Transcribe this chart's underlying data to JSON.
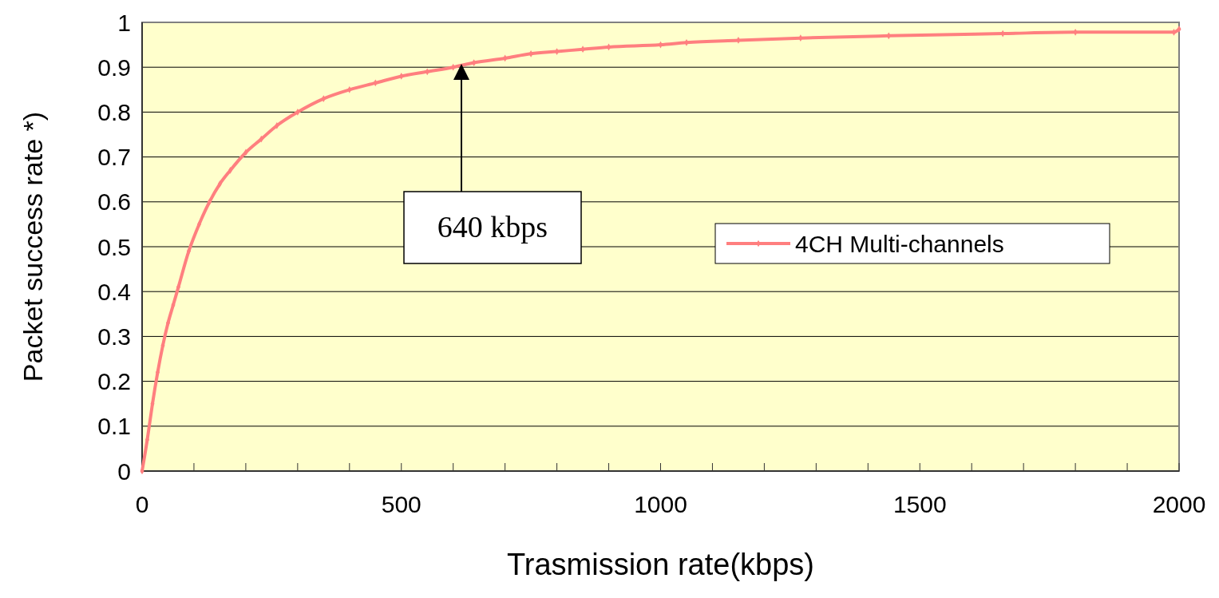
{
  "chart_data": {
    "type": "line",
    "xlabel": "Trasmission rate(kbps)",
    "ylabel": "Packet success rate *)",
    "xlim": [
      0,
      2000
    ],
    "xticks": [
      0,
      500,
      1000,
      1500,
      2000
    ],
    "ylim": [
      0,
      1
    ],
    "yticks": [
      0,
      0.1,
      0.2,
      0.3,
      0.4,
      0.5,
      0.6,
      0.7,
      0.8,
      0.9,
      1
    ],
    "grid": "y",
    "legend": "right",
    "marker": "diamond",
    "line_style": "solid",
    "annotations": [
      "640 kbps"
    ],
    "series": [
      {
        "name": "4CH Multi-channels",
        "color": "#ff7f7f",
        "x": [
          0,
          10,
          20,
          30,
          40,
          50,
          60,
          70,
          90,
          110,
          130,
          150,
          170,
          200,
          230,
          260,
          300,
          350,
          400,
          450,
          500,
          550,
          600,
          640,
          700,
          750,
          800,
          850,
          900,
          1000,
          1050,
          1150,
          1270,
          1440,
          1660,
          1800,
          1990,
          2000
        ],
        "values": [
          0,
          0.07,
          0.15,
          0.22,
          0.28,
          0.33,
          0.37,
          0.41,
          0.49,
          0.55,
          0.6,
          0.64,
          0.67,
          0.71,
          0.74,
          0.77,
          0.8,
          0.83,
          0.85,
          0.865,
          0.88,
          0.89,
          0.9,
          0.91,
          0.92,
          0.93,
          0.935,
          0.94,
          0.945,
          0.95,
          0.955,
          0.96,
          0.965,
          0.97,
          0.975,
          0.978,
          0.978,
          0.985
        ]
      }
    ]
  }
}
